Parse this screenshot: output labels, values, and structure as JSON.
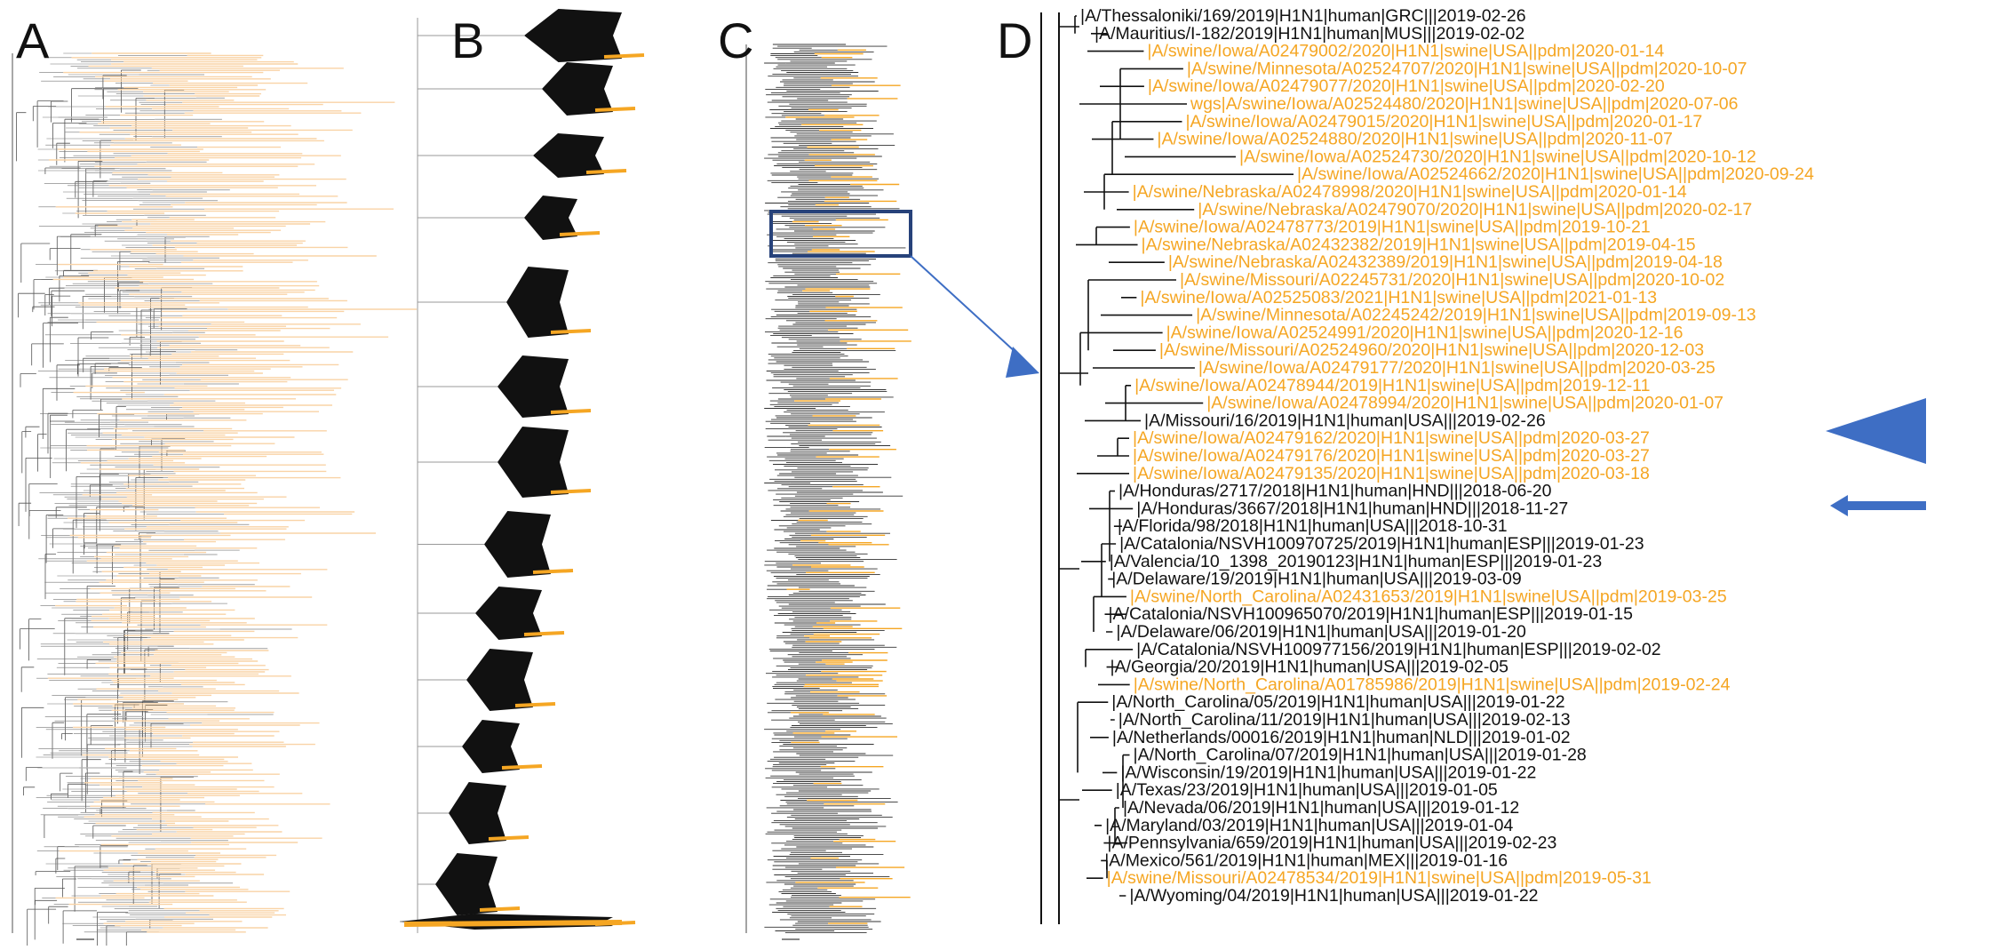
{
  "panels": {
    "a": "A",
    "b": "B",
    "c": "C",
    "d": "D"
  },
  "colors": {
    "swine": "#F5A623",
    "swine_light": "#F9D3A6",
    "human": "#111111",
    "clade_box": "#27427A",
    "highlight": "#3E6EC4",
    "branch_gray": "#6E6E6E"
  },
  "zoom_panel": {
    "leaves": [
      {
        "label": "|A/Thessaloniki/169/2019|H1N1|human|GRC|||2019-02-26",
        "host": "human"
      },
      {
        "label": "|A/Mauritius/I-182/2019|H1N1|human|MUS|||2019-02-02",
        "host": "human"
      },
      {
        "label": "|A/swine/Iowa/A02479002/2020|H1N1|swine|USA||pdm|2020-01-14",
        "host": "swine"
      },
      {
        "label": "|A/swine/Minnesota/A02524707/2020|H1N1|swine|USA||pdm|2020-10-07",
        "host": "swine"
      },
      {
        "label": "|A/swine/Iowa/A02479077/2020|H1N1|swine|USA||pdm|2020-02-20",
        "host": "swine"
      },
      {
        "label": "wgs|A/swine/Iowa/A02524480/2020|H1N1|swine|USA||pdm|2020-07-06",
        "host": "swine"
      },
      {
        "label": "|A/swine/Iowa/A02479015/2020|H1N1|swine|USA||pdm|2020-01-17",
        "host": "swine"
      },
      {
        "label": "|A/swine/Iowa/A02524880/2020|H1N1|swine|USA||pdm|2020-11-07",
        "host": "swine"
      },
      {
        "label": "|A/swine/Iowa/A02524730/2020|H1N1|swine|USA||pdm|2020-10-12",
        "host": "swine"
      },
      {
        "label": "|A/swine/Iowa/A02524662/2020|H1N1|swine|USA||pdm|2020-09-24",
        "host": "swine"
      },
      {
        "label": "|A/swine/Nebraska/A02478998/2020|H1N1|swine|USA||pdm|2020-01-14",
        "host": "swine"
      },
      {
        "label": "|A/swine/Nebraska/A02479070/2020|H1N1|swine|USA||pdm|2020-02-17",
        "host": "swine"
      },
      {
        "label": "|A/swine/Iowa/A02478773/2019|H1N1|swine|USA||pdm|2019-10-21",
        "host": "swine"
      },
      {
        "label": "|A/swine/Nebraska/A02432382/2019|H1N1|swine|USA||pdm|2019-04-15",
        "host": "swine"
      },
      {
        "label": "|A/swine/Nebraska/A02432389/2019|H1N1|swine|USA||pdm|2019-04-18",
        "host": "swine"
      },
      {
        "label": "|A/swine/Missouri/A02245731/2020|H1N1|swine|USA||pdm|2020-10-02",
        "host": "swine"
      },
      {
        "label": "|A/swine/Iowa/A02525083/2021|H1N1|swine|USA||pdm|2021-01-13",
        "host": "swine"
      },
      {
        "label": "|A/swine/Minnesota/A02245242/2019|H1N1|swine|USA||pdm|2019-09-13",
        "host": "swine"
      },
      {
        "label": "|A/swine/Iowa/A02524991/2020|H1N1|swine|USA||pdm|2020-12-16",
        "host": "swine"
      },
      {
        "label": "|A/swine/Missouri/A02524960/2020|H1N1|swine|USA||pdm|2020-12-03",
        "host": "swine"
      },
      {
        "label": "|A/swine/Iowa/A02479177/2020|H1N1|swine|USA||pdm|2020-03-25",
        "host": "swine"
      },
      {
        "label": "|A/swine/Iowa/A02478944/2019|H1N1|swine|USA||pdm|2019-12-11",
        "host": "swine"
      },
      {
        "label": "|A/swine/Iowa/A02478994/2020|H1N1|swine|USA||pdm|2020-01-07",
        "host": "swine"
      },
      {
        "label": "|A/Missouri/16/2019|H1N1|human|USA|||2019-02-26",
        "host": "human"
      },
      {
        "label": "|A/swine/Iowa/A02479162/2020|H1N1|swine|USA||pdm|2020-03-27",
        "host": "swine"
      },
      {
        "label": "|A/swine/Iowa/A02479176/2020|H1N1|swine|USA||pdm|2020-03-27",
        "host": "swine"
      },
      {
        "label": "|A/swine/Iowa/A02479135/2020|H1N1|swine|USA||pdm|2020-03-18",
        "host": "swine"
      },
      {
        "label": "|A/Honduras/2717/2018|H1N1|human|HND|||2018-06-20",
        "host": "human"
      },
      {
        "label": "|A/Honduras/3667/2018|H1N1|human|HND|||2018-11-27",
        "host": "human"
      },
      {
        "label": "|A/Florida/98/2018|H1N1|human|USA|||2018-10-31",
        "host": "human"
      },
      {
        "label": "|A/Catalonia/NSVH100970725/2019|H1N1|human|ESP|||2019-01-23",
        "host": "human"
      },
      {
        "label": "|A/Valencia/10_1398_20190123|H1N1|human|ESP|||2019-01-23",
        "host": "human"
      },
      {
        "label": "|A/Delaware/19/2019|H1N1|human|USA|||2019-03-09",
        "host": "human"
      },
      {
        "label": "|A/swine/North_Carolina/A02431653/2019|H1N1|swine|USA||pdm|2019-03-25",
        "host": "swine"
      },
      {
        "label": "|A/Catalonia/NSVH100965070/2019|H1N1|human|ESP|||2019-01-15",
        "host": "human"
      },
      {
        "label": "|A/Delaware/06/2019|H1N1|human|USA|||2019-01-20",
        "host": "human"
      },
      {
        "label": "|A/Catalonia/NSVH100977156/2019|H1N1|human|ESP|||2019-02-02",
        "host": "human"
      },
      {
        "label": "|A/Georgia/20/2019|H1N1|human|USA|||2019-02-05",
        "host": "human"
      },
      {
        "label": "|A/swine/North_Carolina/A01785986/2019|H1N1|swine|USA||pdm|2019-02-24",
        "host": "swine"
      },
      {
        "label": "|A/North_Carolina/05/2019|H1N1|human|USA|||2019-01-22",
        "host": "human"
      },
      {
        "label": "|A/North_Carolina/11/2019|H1N1|human|USA|||2019-02-13",
        "host": "human"
      },
      {
        "label": "|A/Netherlands/00016/2019|H1N1|human|NLD|||2019-01-02",
        "host": "human"
      },
      {
        "label": "|A/North_Carolina/07/2019|H1N1|human|USA|||2019-01-28",
        "host": "human"
      },
      {
        "label": "|A/Wisconsin/19/2019|H1N1|human|USA|||2019-01-22",
        "host": "human"
      },
      {
        "label": "|A/Texas/23/2019|H1N1|human|USA|||2019-01-05",
        "host": "human"
      },
      {
        "label": "|A/Nevada/06/2019|H1N1|human|USA|||2019-01-12",
        "host": "human"
      },
      {
        "label": "|A/Maryland/03/2019|H1N1|human|USA|||2019-01-04",
        "host": "human"
      },
      {
        "label": "|A/Pennsylvania/659/2019|H1N1|human|USA|||2019-02-23",
        "host": "human"
      },
      {
        "label": "|A/Mexico/561/2019|H1N1|human|MEX|||2019-01-16",
        "host": "human"
      },
      {
        "label": "|A/swine/Missouri/A02478534/2019|H1N1|swine|USA||pdm|2019-05-31",
        "host": "swine"
      },
      {
        "label": "|A/Wyoming/04/2019|H1N1|human|USA|||2019-01-22",
        "host": "human"
      }
    ]
  }
}
